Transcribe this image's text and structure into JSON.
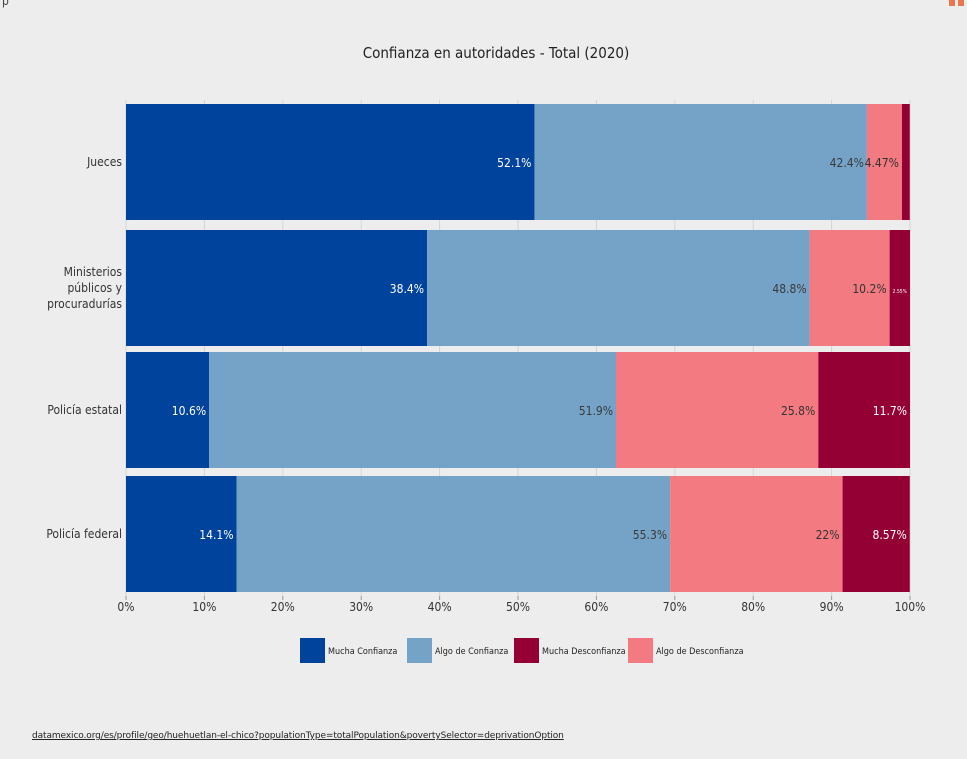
{
  "chart_data": {
    "type": "bar",
    "orientation": "horizontal",
    "stacked": "percent",
    "title": "Confianza en autoridades - Total (2020)",
    "categories": [
      "Jueces",
      "Ministerios públicos y procuradurías",
      "Policía estatal",
      "Policía federal"
    ],
    "category_label_lines": [
      [
        "Jueces"
      ],
      [
        "Ministerios",
        "públicos y",
        "procuradurías"
      ],
      [
        "Policía estatal"
      ],
      [
        "Policía federal"
      ]
    ],
    "series": [
      {
        "name": "Mucha Confianza",
        "color": "#00439c",
        "values": [
          52.1,
          38.4,
          10.6,
          14.1
        ],
        "labels": [
          "52.1%",
          "38.4%",
          "10.6%",
          "14.1%"
        ]
      },
      {
        "name": "Algo de Confianza",
        "color": "#75a3c7",
        "values": [
          42.4,
          48.8,
          51.9,
          55.3
        ],
        "labels": [
          "42.4%",
          "48.8%",
          "51.9%",
          "55.3%"
        ]
      },
      {
        "name": "Algo de Desconfianza",
        "color": "#f37a80",
        "values": [
          4.47,
          10.2,
          25.8,
          22.0
        ],
        "labels": [
          "4.47%",
          "10.2%",
          "25.8%",
          "22%"
        ]
      },
      {
        "name": "Mucha Desconfianza",
        "color": "#950034",
        "values": [
          1.0,
          2.6,
          11.7,
          8.57
        ],
        "labels": [
          "",
          "2.55%",
          "11.7%",
          "8.57%"
        ]
      }
    ],
    "xlim": [
      0,
      100
    ],
    "x_ticks": [
      "0%",
      "10%",
      "20%",
      "30%",
      "40%",
      "50%",
      "60%",
      "70%",
      "80%",
      "90%",
      "100%"
    ],
    "legend_order": [
      "Mucha Confianza",
      "Algo de Confianza",
      "Mucha Desconfianza",
      "Algo de Desconfianza"
    ],
    "legend_position": "bottom",
    "grid": true
  },
  "footer": {
    "source": "datamexico.org/es/profile/geo/huehuetlan-el-chico?populationType=totalPopulation&povertySelector=deprivationOption"
  }
}
